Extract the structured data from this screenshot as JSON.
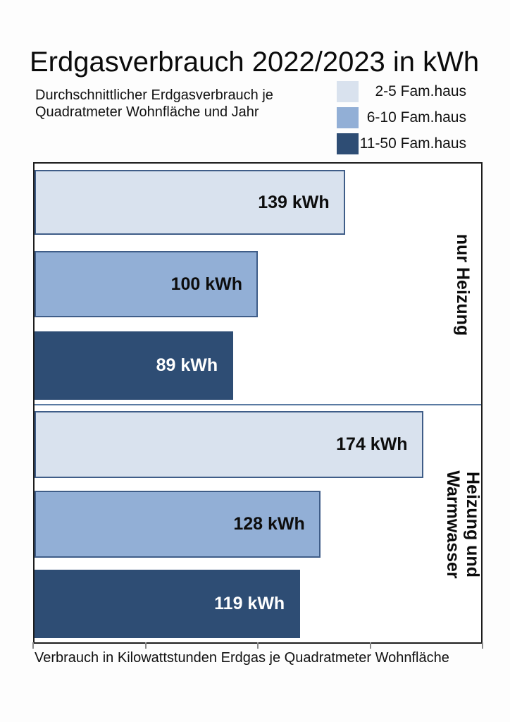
{
  "header": {
    "title": "Erdgasverbrauch 2022/2023 in kWh",
    "subtitle": "Durchschnittlicher Erdgasverbrauch je Quadratmeter Wohnfläche und Jahr"
  },
  "chart_data": {
    "type": "bar",
    "orientation": "horizontal",
    "title": "Erdgasverbrauch 2022/2023 in kWh",
    "subtitle": "Durchschnittlicher Erdgasverbrauch je Quadratmeter Wohnfläche und Jahr",
    "xlabel": "Verbrauch in Kilowattstunden Erdgas je Quadratmeter Wohnfläche",
    "unit": "kWh",
    "xlim": [
      0,
      200
    ],
    "xticks": [
      0,
      50,
      100,
      150,
      200
    ],
    "xtick_labels_visible": false,
    "grid": false,
    "legend_position": "top-right",
    "categories": [
      "nur Heizung",
      "Heizung und Warmwasser"
    ],
    "series": [
      {
        "name": "2-5 Fam.haus",
        "color": "#D9E2EE",
        "border_color": "#3F5D88",
        "value_text_color": "#0d0d0d",
        "values": [
          139,
          174
        ]
      },
      {
        "name": "6-10 Fam.haus",
        "color": "#92AFD6",
        "border_color": "#3F5D88",
        "value_text_color": "#0d0d0d",
        "values": [
          100,
          128
        ]
      },
      {
        "name": "11-50 Fam.haus",
        "color": "#2E4D74",
        "border_color": "#2E4D74",
        "value_text_color": "#ffffff",
        "values": [
          89,
          119
        ]
      }
    ],
    "bar_value_labels": [
      [
        "139 kWh",
        "100 kWh",
        "89 kWh"
      ],
      [
        "174 kWh",
        "128 kWh",
        "119 kWh"
      ]
    ]
  },
  "colors": {
    "plot_border": "#1c1c1c",
    "group_divider": "#5a7aa2",
    "tick": "#8a8a8a",
    "background": "#fdfdfd"
  }
}
